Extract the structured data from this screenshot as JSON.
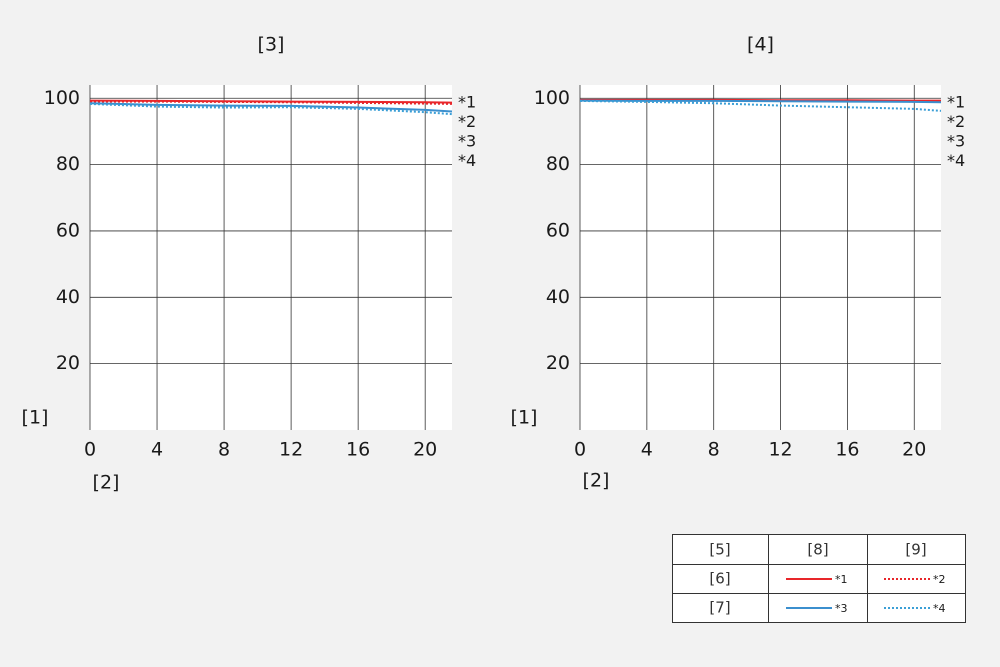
{
  "chart_data": [
    {
      "type": "line",
      "title": "[3]",
      "y_label": "[1]",
      "x_label": "[2]",
      "x": [
        0,
        4,
        8,
        12,
        16,
        20,
        21.6
      ],
      "xlim": [
        0,
        21.6
      ],
      "xticks": [
        0,
        4,
        8,
        12,
        16,
        20
      ],
      "ylim": [
        0,
        104
      ],
      "yticks": [
        20,
        40,
        60,
        80,
        100
      ],
      "grid": true,
      "series": [
        {
          "name": "*1",
          "color": "#e8262a",
          "style": "solid",
          "values": [
            99.3,
            99.2,
            99.1,
            99.0,
            98.9,
            98.8,
            98.7
          ]
        },
        {
          "name": "*2",
          "color": "#e8262a",
          "style": "dotted",
          "values": [
            99.0,
            99.0,
            98.9,
            98.8,
            98.6,
            98.4,
            98.3
          ]
        },
        {
          "name": "*3",
          "color": "#3b8fce",
          "style": "solid",
          "values": [
            98.5,
            98.0,
            97.8,
            97.7,
            97.2,
            96.5,
            96.0
          ]
        },
        {
          "name": "*4",
          "color": "#3b9fd6",
          "style": "dotted",
          "values": [
            98.3,
            97.5,
            97.2,
            97.3,
            96.8,
            95.8,
            95.2
          ]
        }
      ]
    },
    {
      "type": "line",
      "title": "[4]",
      "y_label": "[1]",
      "x_label": "[2]",
      "x": [
        0,
        4,
        8,
        12,
        16,
        20,
        21.6
      ],
      "xlim": [
        0,
        21.6
      ],
      "xticks": [
        0,
        4,
        8,
        12,
        16,
        20
      ],
      "ylim": [
        0,
        104
      ],
      "yticks": [
        20,
        40,
        60,
        80,
        100
      ],
      "grid": true,
      "series": [
        {
          "name": "*1",
          "color": "#e8262a",
          "style": "solid",
          "values": [
            99.5,
            99.5,
            99.5,
            99.4,
            99.4,
            99.3,
            99.3
          ]
        },
        {
          "name": "*2",
          "color": "#e8262a",
          "style": "dotted",
          "values": [
            99.3,
            99.3,
            99.3,
            99.2,
            99.1,
            99.0,
            99.0
          ]
        },
        {
          "name": "*3",
          "color": "#3b8fce",
          "style": "solid",
          "values": [
            99.3,
            99.2,
            99.2,
            99.1,
            99.0,
            98.9,
            98.8
          ]
        },
        {
          "name": "*4",
          "color": "#3b9fd6",
          "style": "dotted",
          "values": [
            99.2,
            98.9,
            98.5,
            97.8,
            97.3,
            96.8,
            96.2
          ]
        }
      ]
    }
  ],
  "legend_table": {
    "columns": [
      "[5]",
      "[8]",
      "[9]"
    ],
    "rows": [
      "[6]",
      "[7]"
    ]
  }
}
